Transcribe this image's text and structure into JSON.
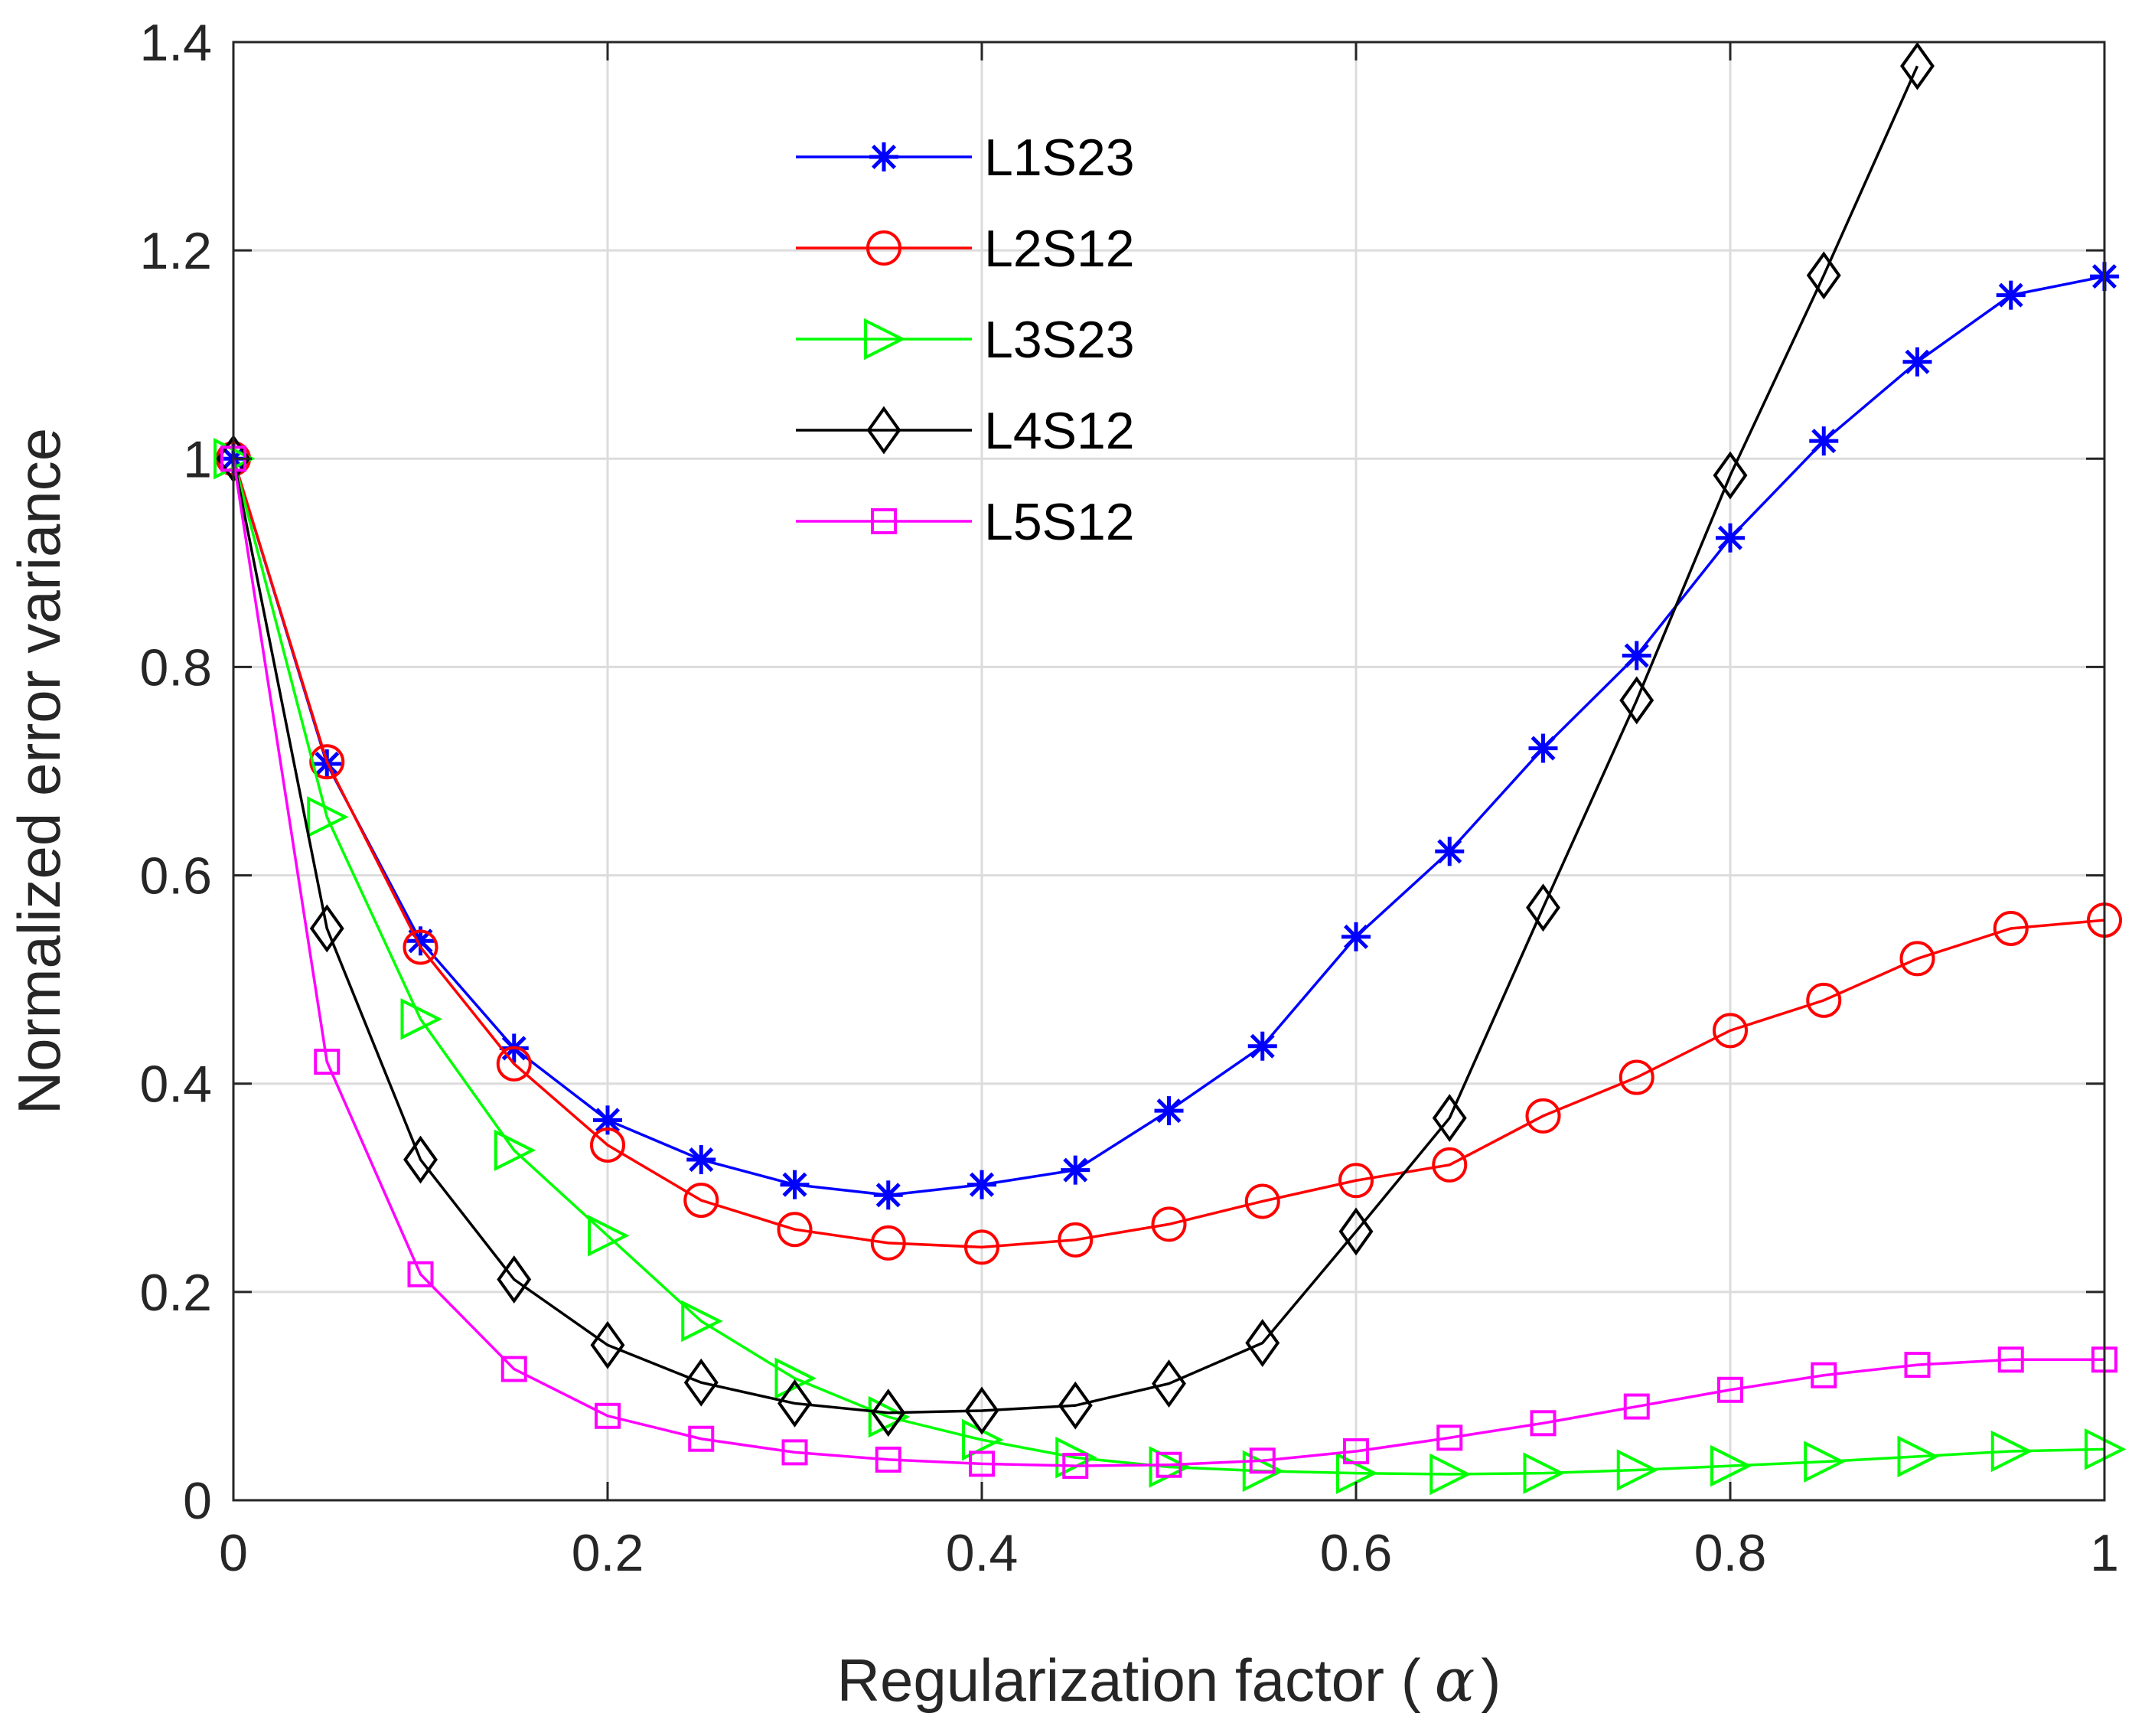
{
  "chart_data": {
    "type": "line",
    "title": "",
    "xlabel": "Regularization factor (",
    "xlabel_symbol": "α",
    "xlabel_suffix": ")",
    "ylabel": "Normalized error variance",
    "xlim": [
      0,
      1
    ],
    "ylim": [
      0,
      1.4
    ],
    "xticks": [
      0,
      0.2,
      0.4,
      0.6,
      0.8,
      1
    ],
    "xtick_labels": [
      "0",
      "0.2",
      "0.4",
      "0.6",
      "0.8",
      "1"
    ],
    "yticks": [
      0,
      0.2,
      0.4,
      0.6,
      0.8,
      1,
      1.2,
      1.4
    ],
    "ytick_labels": [
      "0",
      "0.2",
      "0.4",
      "0.6",
      "0.8",
      "1",
      "1.2",
      "1.4"
    ],
    "grid": true,
    "legend_position": "top-center",
    "x": [
      0,
      0.05,
      0.1,
      0.15,
      0.2,
      0.25,
      0.3,
      0.35,
      0.4,
      0.45,
      0.5,
      0.55,
      0.6,
      0.65,
      0.7,
      0.75,
      0.8,
      0.85,
      0.9,
      0.95,
      1.0
    ],
    "series": [
      {
        "name": "L1S23",
        "color": "#0000ff",
        "marker": "asterisk",
        "values": [
          1.0,
          0.707,
          0.537,
          0.434,
          0.365,
          0.327,
          0.303,
          0.293,
          0.303,
          0.317,
          0.374,
          0.436,
          0.541,
          0.623,
          0.722,
          0.811,
          0.924,
          1.017,
          1.093,
          1.157,
          1.175
        ]
      },
      {
        "name": "L2S12",
        "color": "#ff0000",
        "marker": "circle",
        "values": [
          1.0,
          0.709,
          0.531,
          0.419,
          0.341,
          0.288,
          0.26,
          0.247,
          0.243,
          0.25,
          0.265,
          0.287,
          0.307,
          0.322,
          0.369,
          0.406,
          0.451,
          0.48,
          0.52,
          0.549,
          0.557
        ]
      },
      {
        "name": "L3S23",
        "color": "#00ff00",
        "marker": "triangle-right",
        "values": [
          1.0,
          0.656,
          0.462,
          0.336,
          0.254,
          0.172,
          0.117,
          0.08,
          0.058,
          0.041,
          0.032,
          0.028,
          0.026,
          0.025,
          0.026,
          0.029,
          0.033,
          0.037,
          0.042,
          0.047,
          0.049
        ]
      },
      {
        "name": "L4S12",
        "color": "#000000",
        "marker": "diamond",
        "values": [
          1.0,
          0.549,
          0.327,
          0.212,
          0.149,
          0.113,
          0.093,
          0.084,
          0.086,
          0.091,
          0.112,
          0.151,
          0.258,
          0.367,
          0.569,
          0.768,
          0.984,
          1.176,
          1.377,
          null,
          null
        ]
      },
      {
        "name": "L5S12",
        "color": "#ff00ff",
        "marker": "square",
        "values": [
          1.0,
          0.421,
          0.217,
          0.126,
          0.081,
          0.059,
          0.046,
          0.039,
          0.035,
          0.033,
          0.034,
          0.038,
          0.047,
          0.06,
          0.074,
          0.09,
          0.106,
          0.12,
          0.13,
          0.135,
          0.135
        ]
      }
    ]
  }
}
